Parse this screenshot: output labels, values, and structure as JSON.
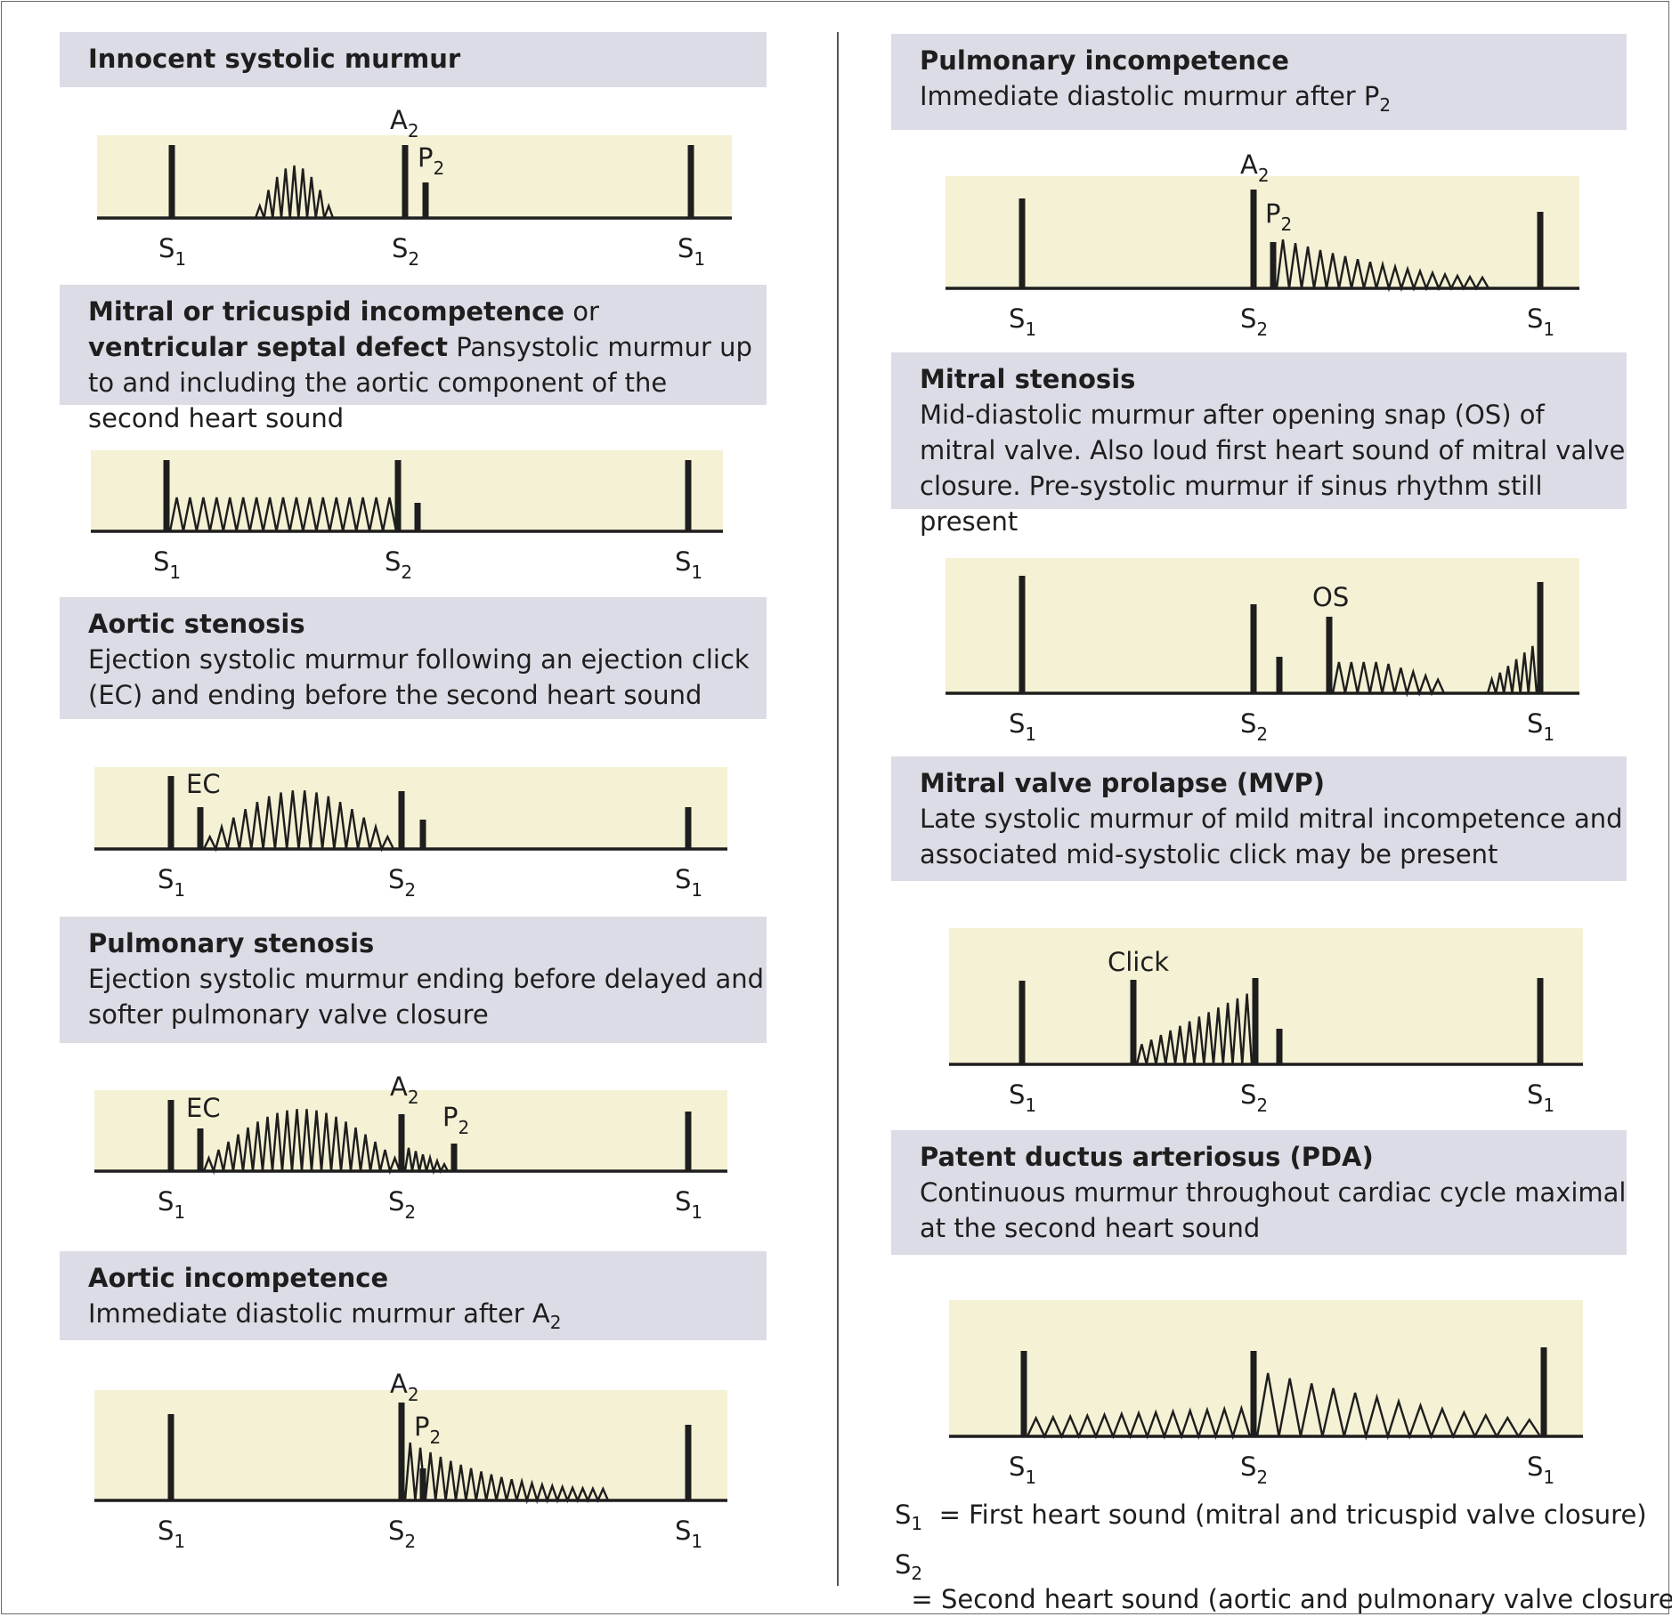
{
  "colors": {
    "header_bg": "#dcdce6",
    "plot_bg": "#f5f1d4",
    "ink": "#1e1e1e"
  },
  "labels": {
    "s1": "S",
    "s1_sub": "1",
    "s2": "S",
    "s2_sub": "2",
    "a2": "A",
    "a2_sub": "2",
    "p2": "P",
    "p2_sub": "2",
    "ec": "EC",
    "os": "OS",
    "click": "Click"
  },
  "panels": [
    {
      "title": "Innocent systolic murmur",
      "body": ""
    },
    {
      "title": "Mitral or tricuspid incompetence",
      "title_mid": " or ",
      "title2": "ventricular septal defect",
      "body": " Pansystolic murmur up to and including the aortic component of the second heart sound"
    },
    {
      "title": "Aortic stenosis",
      "body": "Ejection systolic murmur following an ejection click (EC) and ending before the second heart sound"
    },
    {
      "title": "Pulmonary stenosis",
      "body": "Ejection systolic murmur ending before delayed and softer pulmonary valve closure"
    },
    {
      "title": "Aortic incompetence",
      "body": "Immediate diastolic murmur after A",
      "body_sub": "2"
    },
    {
      "title": "Pulmonary incompetence",
      "body": "Immediate diastolic murmur after P",
      "body_sub": "2"
    },
    {
      "title": "Mitral stenosis",
      "body": "Mid-diastolic murmur after opening snap (OS) of mitral valve. Also loud first heart sound of mitral valve closure. Pre-systolic murmur if sinus rhythm still present"
    },
    {
      "title": "Mitral valve prolapse (MVP)",
      "body": "Late systolic murmur of mild mitral incompetence  and associated mid-systolic click may be present"
    },
    {
      "title": "Patent ductus arteriosus (PDA)",
      "body": "Continuous murmur throughout cardiac cycle maximal at the second heart sound"
    }
  ],
  "legend": [
    {
      "sym": "S",
      "sub": "1",
      "text": "  = First heart sound (mitral and tricuspid valve closure)"
    },
    {
      "sym": "S",
      "sub": "2",
      "text": "  = Second heart sound (aortic and pulmonary valve closure)"
    }
  ]
}
